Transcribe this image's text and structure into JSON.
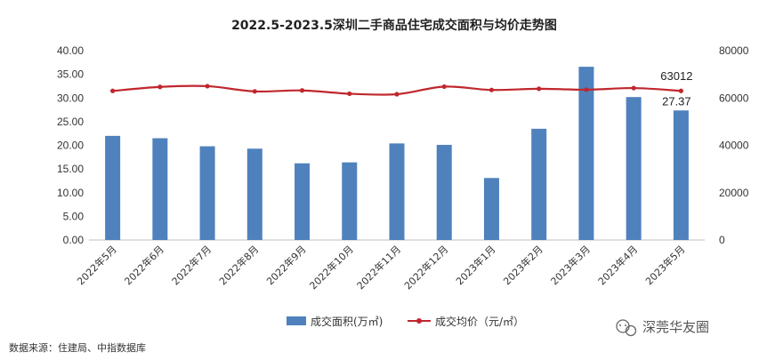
{
  "chart_data": {
    "type": "bar",
    "title": "2022.5-2023.5深圳二手商品住宅成交面积与均价走势图",
    "categories": [
      "2022年5月",
      "2022年6月",
      "2022年7月",
      "2022年8月",
      "2022年9月",
      "2022年10月",
      "2022年11月",
      "2022年12月",
      "2023年1月",
      "2023年2月",
      "2023年3月",
      "2023年4月",
      "2023年5月"
    ],
    "series": [
      {
        "name": "成交面积(万㎡)",
        "type": "bar",
        "axis": "left",
        "color": "#4f81bd",
        "values": [
          22.0,
          21.5,
          19.8,
          19.3,
          16.2,
          16.4,
          20.4,
          20.1,
          13.1,
          23.5,
          36.6,
          30.2,
          27.37
        ]
      },
      {
        "name": "成交均价（元/㎡）",
        "type": "line",
        "axis": "right",
        "color": "#c0272d",
        "values": [
          63000,
          64700,
          65000,
          62800,
          63200,
          61800,
          61600,
          64800,
          63400,
          63900,
          63500,
          64200,
          63012
        ]
      }
    ],
    "ylim_left": [
      0,
      40
    ],
    "yticks_left": [
      "0.00",
      "5.00",
      "10.00",
      "15.00",
      "20.00",
      "25.00",
      "30.00",
      "35.00",
      "40.00"
    ],
    "ylim_right": [
      0,
      80000
    ],
    "yticks_right": [
      "0",
      "20000",
      "40000",
      "60000",
      "80000"
    ],
    "data_labels": [
      {
        "series": 1,
        "index": 12,
        "text": "63012"
      },
      {
        "series": 0,
        "index": 12,
        "text": "27.37"
      }
    ],
    "legend_position": "bottom",
    "grid": false
  },
  "source_note": "数据来源：住建局、中指数据库",
  "watermark": "深莞华友圈",
  "watermark_icon": "wechat-icon"
}
